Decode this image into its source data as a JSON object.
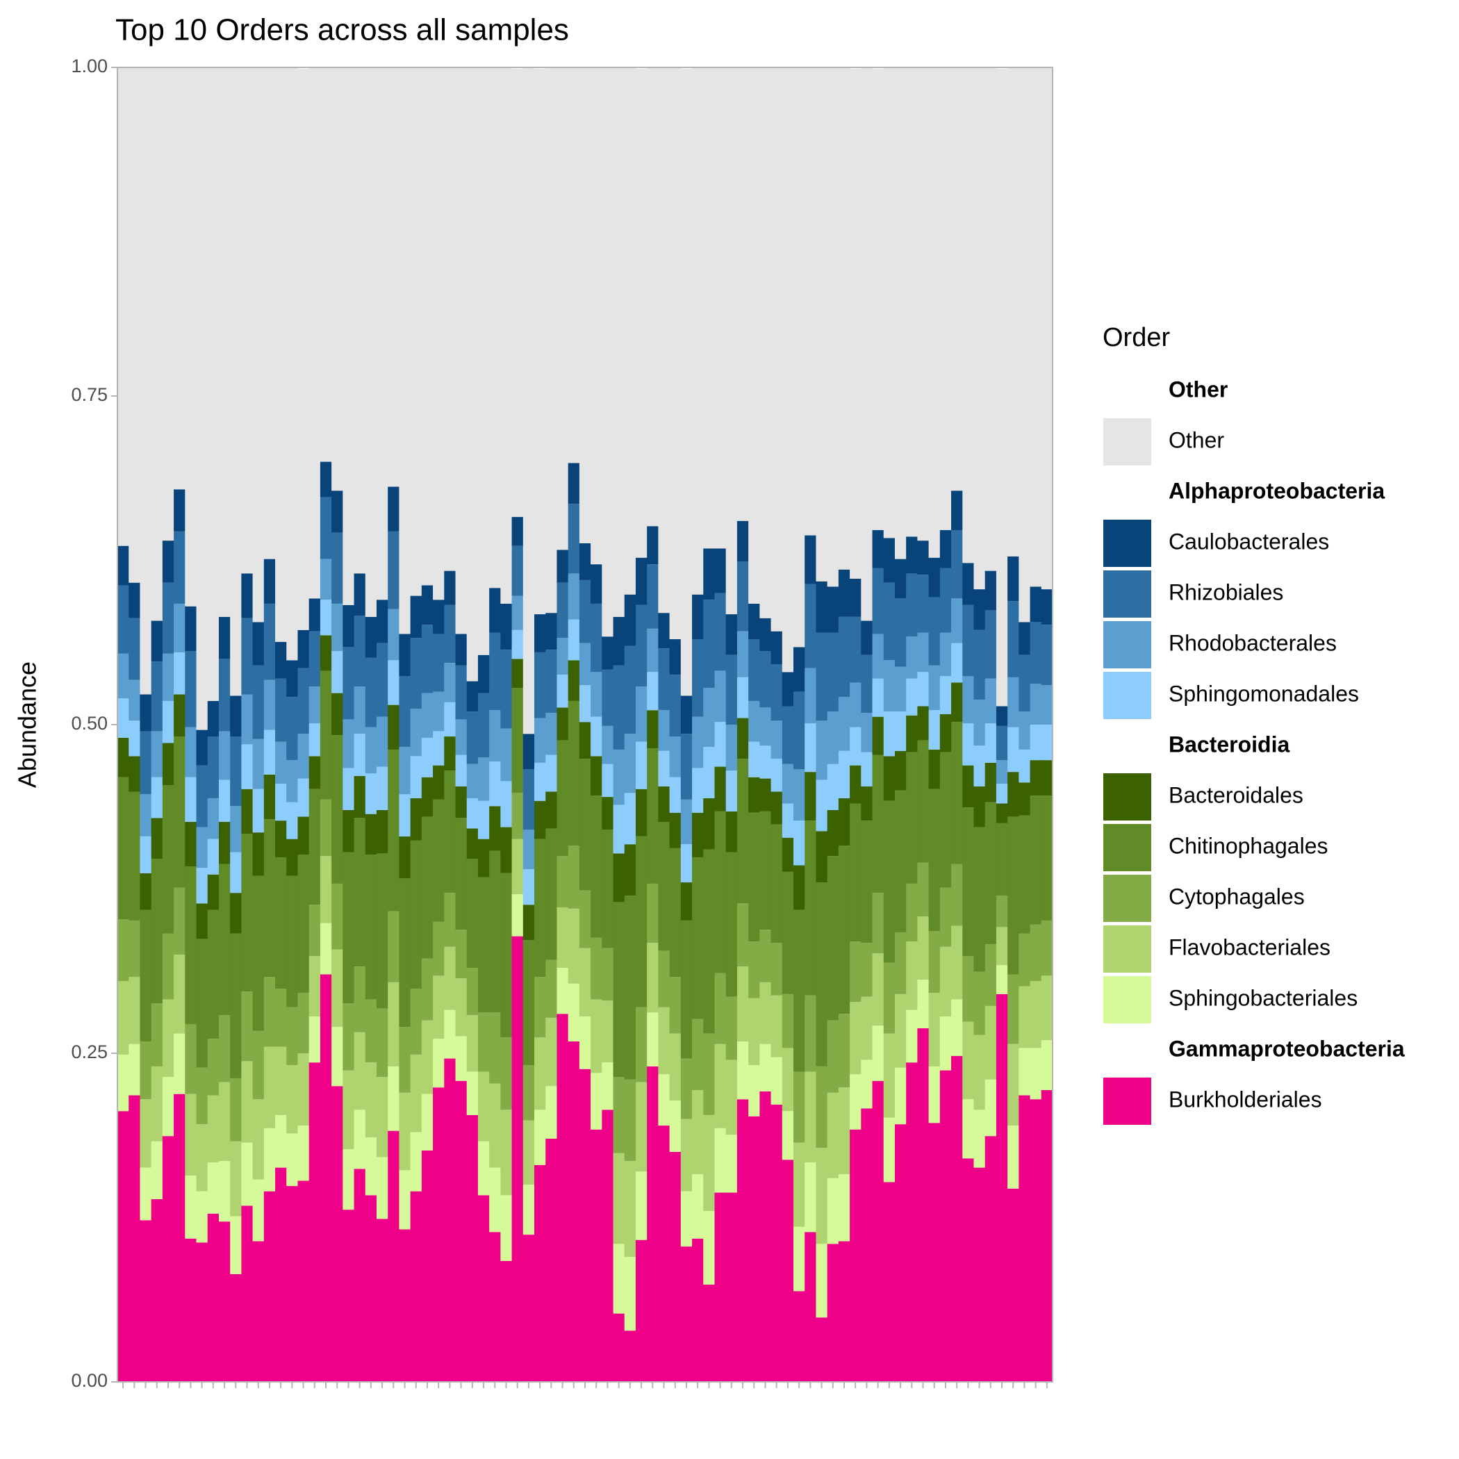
{
  "chart_data": {
    "type": "stacked_bar",
    "title": "Top 10 Orders across all samples",
    "y_label": "Abundance",
    "legend_title": "Order",
    "legend_position": "right",
    "grid": false,
    "ylim": [
      0,
      1
    ],
    "yticks": [
      {
        "value": 0,
        "label": "0.00"
      },
      0.25,
      {
        "value": 0.5,
        "label": "0.50"
      },
      0.75,
      {
        "value": 1,
        "label": "1.00"
      }
    ],
    "categories": [
      null,
      null,
      null,
      null,
      null,
      null,
      null,
      null,
      null,
      null,
      null,
      null,
      null,
      null,
      null,
      null,
      null,
      null,
      null,
      null,
      null,
      null,
      null,
      null,
      null,
      null,
      null,
      null,
      null,
      null,
      null,
      null,
      null,
      null,
      null,
      null,
      null,
      null,
      null,
      null,
      null,
      null,
      null,
      null,
      null,
      null,
      null,
      null,
      null,
      null,
      null,
      null,
      null,
      null,
      null,
      null,
      null,
      null,
      null,
      null,
      null,
      null,
      null,
      null,
      null,
      null,
      null,
      null,
      null,
      null,
      null,
      null,
      null,
      null,
      null,
      null,
      null,
      null,
      null,
      null,
      null,
      null,
      null
    ],
    "series": [
      {
        "name": "Other",
        "group": "Other",
        "color": "#e5e5e5",
        "values": [
          0.364,
          0.392,
          0.477,
          0.421,
          0.363,
          0.321,
          0.411,
          0.504,
          0.482,
          0.418,
          0.478,
          0.386,
          0.423,
          0.375,
          0.437,
          0.451,
          0.427,
          0.407,
          0.3,
          0.325,
          0.409,
          0.388,
          0.418,
          0.406,
          0.319,
          0.434,
          0.405,
          0.394,
          0.406,
          0.384,
          0.431,
          0.467,
          0.448,
          0.396,
          0.408,
          0.341,
          0.508,
          0.415,
          0.415,
          0.37,
          0.301,
          0.362,
          0.378,
          0.433,
          0.418,
          0.401,
          0.372,
          0.35,
          0.415,
          0.435,
          0.477,
          0.401,
          0.366,
          0.366,
          0.416,
          0.345,
          0.408,
          0.419,
          0.429,
          0.461,
          0.441,
          0.356,
          0.391,
          0.395,
          0.383,
          0.388,
          0.422,
          0.351,
          0.358,
          0.374,
          0.357,
          0.361,
          0.373,
          0.353,
          0.322,
          0.38,
          0.397,
          0.383,
          0.485,
          0.373,
          0.422,
          0.395,
          0.398
        ]
      },
      {
        "name": "Caulobacterales",
        "group": "Alphaproteobacteria",
        "color": "#08437a",
        "values": [
          0.03,
          0.027,
          0.028,
          0.031,
          0.032,
          0.032,
          0.034,
          0.027,
          0.027,
          0.032,
          0.031,
          0.034,
          0.033,
          0.034,
          0.028,
          0.028,
          0.029,
          0.025,
          0.027,
          0.032,
          0.032,
          0.032,
          0.031,
          0.033,
          0.034,
          0.032,
          0.032,
          0.03,
          0.026,
          0.026,
          0.024,
          0.023,
          0.029,
          0.034,
          0.035,
          0.022,
          0.027,
          0.029,
          0.028,
          0.025,
          0.031,
          0.028,
          0.03,
          0.025,
          0.037,
          0.039,
          0.036,
          0.029,
          0.027,
          0.027,
          0.029,
          0.034,
          0.039,
          0.034,
          0.031,
          0.031,
          0.027,
          0.025,
          0.025,
          0.026,
          0.034,
          0.037,
          0.039,
          0.035,
          0.036,
          0.029,
          0.026,
          0.029,
          0.034,
          0.03,
          0.028,
          0.026,
          0.03,
          0.029,
          0.03,
          0.032,
          0.031,
          0.03,
          0.015,
          0.034,
          0.025,
          0.027,
          0.027
        ]
      },
      {
        "name": "Rhizobiales",
        "group": "Alphaproteobacteria",
        "color": "#2e6fa3",
        "values": [
          0.052,
          0.047,
          0.048,
          0.053,
          0.054,
          0.055,
          0.058,
          0.047,
          0.047,
          0.055,
          0.053,
          0.058,
          0.056,
          0.058,
          0.048,
          0.048,
          0.05,
          0.042,
          0.047,
          0.054,
          0.055,
          0.054,
          0.053,
          0.056,
          0.059,
          0.054,
          0.054,
          0.052,
          0.044,
          0.044,
          0.041,
          0.04,
          0.049,
          0.059,
          0.06,
          0.038,
          0.046,
          0.05,
          0.048,
          0.042,
          0.053,
          0.048,
          0.052,
          0.043,
          0.064,
          0.067,
          0.062,
          0.049,
          0.047,
          0.047,
          0.05,
          0.059,
          0.067,
          0.059,
          0.053,
          0.053,
          0.047,
          0.043,
          0.043,
          0.044,
          0.059,
          0.064,
          0.067,
          0.06,
          0.061,
          0.05,
          0.044,
          0.05,
          0.059,
          0.052,
          0.048,
          0.044,
          0.052,
          0.049,
          0.052,
          0.054,
          0.053,
          0.052,
          0.026,
          0.058,
          0.043,
          0.047,
          0.046
        ]
      },
      {
        "name": "Rhodobacterales",
        "group": "Alphaproteobacteria",
        "color": "#5b9fd1",
        "values": [
          0.034,
          0.031,
          0.032,
          0.035,
          0.036,
          0.037,
          0.038,
          0.031,
          0.031,
          0.037,
          0.035,
          0.038,
          0.038,
          0.038,
          0.032,
          0.032,
          0.034,
          0.028,
          0.031,
          0.036,
          0.037,
          0.036,
          0.035,
          0.038,
          0.039,
          0.036,
          0.036,
          0.034,
          0.03,
          0.03,
          0.027,
          0.026,
          0.033,
          0.039,
          0.04,
          0.026,
          0.03,
          0.034,
          0.032,
          0.028,
          0.035,
          0.032,
          0.034,
          0.029,
          0.042,
          0.045,
          0.042,
          0.033,
          0.031,
          0.031,
          0.034,
          0.039,
          0.045,
          0.039,
          0.035,
          0.035,
          0.031,
          0.029,
          0.029,
          0.03,
          0.039,
          0.042,
          0.045,
          0.04,
          0.041,
          0.034,
          0.03,
          0.034,
          0.039,
          0.034,
          0.032,
          0.03,
          0.034,
          0.033,
          0.034,
          0.036,
          0.035,
          0.034,
          0.018,
          0.038,
          0.029,
          0.031,
          0.03
        ]
      },
      {
        "name": "Sphingomonadales",
        "group": "Alphaproteobacteria",
        "color": "#8dcdfd",
        "values": [
          0.03,
          0.027,
          0.028,
          0.031,
          0.032,
          0.032,
          0.034,
          0.027,
          0.027,
          0.032,
          0.031,
          0.034,
          0.033,
          0.034,
          0.028,
          0.028,
          0.029,
          0.025,
          0.027,
          0.032,
          0.032,
          0.032,
          0.031,
          0.033,
          0.034,
          0.032,
          0.032,
          0.03,
          0.026,
          0.026,
          0.024,
          0.023,
          0.029,
          0.034,
          0.035,
          0.022,
          0.027,
          0.029,
          0.028,
          0.025,
          0.031,
          0.028,
          0.03,
          0.025,
          0.037,
          0.039,
          0.036,
          0.029,
          0.027,
          0.027,
          0.029,
          0.034,
          0.039,
          0.034,
          0.031,
          0.031,
          0.027,
          0.025,
          0.025,
          0.026,
          0.034,
          0.037,
          0.039,
          0.035,
          0.036,
          0.029,
          0.026,
          0.029,
          0.034,
          0.03,
          0.028,
          0.026,
          0.03,
          0.029,
          0.03,
          0.032,
          0.031,
          0.03,
          0.015,
          0.034,
          0.025,
          0.027,
          0.027
        ]
      },
      {
        "name": "Bacteroidales",
        "group": "Bacteroidia",
        "color": "#3c6100",
        "values": [
          0.03,
          0.027,
          0.028,
          0.031,
          0.032,
          0.032,
          0.034,
          0.027,
          0.027,
          0.032,
          0.031,
          0.034,
          0.033,
          0.034,
          0.028,
          0.028,
          0.029,
          0.025,
          0.027,
          0.032,
          0.032,
          0.032,
          0.031,
          0.033,
          0.034,
          0.032,
          0.032,
          0.03,
          0.026,
          0.026,
          0.024,
          0.023,
          0.029,
          0.034,
          0.035,
          0.022,
          0.027,
          0.029,
          0.028,
          0.025,
          0.031,
          0.028,
          0.03,
          0.025,
          0.037,
          0.039,
          0.036,
          0.029,
          0.027,
          0.027,
          0.029,
          0.034,
          0.039,
          0.034,
          0.031,
          0.031,
          0.027,
          0.025,
          0.025,
          0.026,
          0.034,
          0.037,
          0.039,
          0.035,
          0.036,
          0.029,
          0.026,
          0.029,
          0.034,
          0.03,
          0.028,
          0.026,
          0.03,
          0.029,
          0.03,
          0.032,
          0.031,
          0.03,
          0.015,
          0.034,
          0.025,
          0.027,
          0.027
        ]
      },
      {
        "name": "Chitinophagales",
        "group": "Bacteroidia",
        "color": "#618b26",
        "values": [
          0.108,
          0.098,
          0.1,
          0.11,
          0.113,
          0.115,
          0.12,
          0.098,
          0.098,
          0.115,
          0.11,
          0.12,
          0.118,
          0.12,
          0.1,
          0.1,
          0.105,
          0.088,
          0.098,
          0.113,
          0.115,
          0.113,
          0.11,
          0.118,
          0.123,
          0.113,
          0.113,
          0.108,
          0.093,
          0.093,
          0.085,
          0.083,
          0.103,
          0.123,
          0.125,
          0.08,
          0.095,
          0.105,
          0.1,
          0.088,
          0.11,
          0.1,
          0.108,
          0.09,
          0.133,
          0.14,
          0.13,
          0.103,
          0.098,
          0.098,
          0.105,
          0.123,
          0.14,
          0.123,
          0.11,
          0.11,
          0.098,
          0.09,
          0.09,
          0.093,
          0.123,
          0.133,
          0.14,
          0.125,
          0.128,
          0.105,
          0.093,
          0.105,
          0.123,
          0.108,
          0.1,
          0.093,
          0.108,
          0.103,
          0.108,
          0.113,
          0.11,
          0.108,
          0.055,
          0.12,
          0.09,
          0.098,
          0.095
        ]
      },
      {
        "name": "Cytophagales",
        "group": "Bacteroidia",
        "color": "#83ab46",
        "values": [
          0.047,
          0.043,
          0.044,
          0.048,
          0.05,
          0.051,
          0.053,
          0.043,
          0.043,
          0.051,
          0.048,
          0.053,
          0.052,
          0.053,
          0.044,
          0.044,
          0.046,
          0.039,
          0.043,
          0.05,
          0.051,
          0.05,
          0.048,
          0.052,
          0.054,
          0.05,
          0.05,
          0.047,
          0.041,
          0.041,
          0.037,
          0.036,
          0.045,
          0.054,
          0.055,
          0.035,
          0.042,
          0.046,
          0.044,
          0.039,
          0.048,
          0.044,
          0.047,
          0.04,
          0.058,
          0.062,
          0.057,
          0.045,
          0.043,
          0.043,
          0.046,
          0.054,
          0.062,
          0.054,
          0.048,
          0.048,
          0.043,
          0.04,
          0.04,
          0.041,
          0.054,
          0.058,
          0.062,
          0.055,
          0.056,
          0.046,
          0.041,
          0.046,
          0.054,
          0.047,
          0.044,
          0.041,
          0.047,
          0.045,
          0.047,
          0.05,
          0.048,
          0.047,
          0.024,
          0.053,
          0.04,
          0.043,
          0.042
        ]
      },
      {
        "name": "Flavobacteriales",
        "group": "Bacteroidia",
        "color": "#afd46f",
        "values": [
          0.056,
          0.051,
          0.052,
          0.057,
          0.059,
          0.06,
          0.062,
          0.051,
          0.051,
          0.06,
          0.057,
          0.062,
          0.061,
          0.062,
          0.052,
          0.052,
          0.055,
          0.046,
          0.051,
          0.059,
          0.06,
          0.059,
          0.057,
          0.061,
          0.064,
          0.059,
          0.059,
          0.056,
          0.048,
          0.048,
          0.044,
          0.043,
          0.053,
          0.064,
          0.065,
          0.042,
          0.049,
          0.055,
          0.052,
          0.046,
          0.057,
          0.052,
          0.056,
          0.047,
          0.069,
          0.073,
          0.068,
          0.053,
          0.051,
          0.051,
          0.055,
          0.064,
          0.073,
          0.064,
          0.057,
          0.057,
          0.051,
          0.047,
          0.047,
          0.048,
          0.064,
          0.069,
          0.073,
          0.065,
          0.066,
          0.055,
          0.048,
          0.055,
          0.064,
          0.056,
          0.052,
          0.048,
          0.056,
          0.053,
          0.056,
          0.059,
          0.057,
          0.056,
          0.029,
          0.062,
          0.047,
          0.051,
          0.049
        ]
      },
      {
        "name": "Sphingobacteriales",
        "group": "Bacteroidia",
        "color": "#d6fa9a",
        "values": [
          0.043,
          0.039,
          0.04,
          0.044,
          0.045,
          0.046,
          0.048,
          0.039,
          0.039,
          0.046,
          0.044,
          0.048,
          0.047,
          0.048,
          0.04,
          0.04,
          0.042,
          0.035,
          0.039,
          0.045,
          0.046,
          0.045,
          0.044,
          0.047,
          0.049,
          0.045,
          0.045,
          0.043,
          0.037,
          0.037,
          0.034,
          0.033,
          0.041,
          0.049,
          0.05,
          0.032,
          0.038,
          0.042,
          0.04,
          0.035,
          0.044,
          0.04,
          0.043,
          0.036,
          0.053,
          0.056,
          0.052,
          0.041,
          0.039,
          0.039,
          0.042,
          0.049,
          0.056,
          0.049,
          0.044,
          0.044,
          0.039,
          0.036,
          0.036,
          0.037,
          0.049,
          0.053,
          0.056,
          0.05,
          0.051,
          0.042,
          0.037,
          0.042,
          0.049,
          0.043,
          0.04,
          0.037,
          0.043,
          0.041,
          0.043,
          0.045,
          0.044,
          0.043,
          0.022,
          0.048,
          0.036,
          0.039,
          0.038
        ]
      },
      {
        "name": "Burkholderiales",
        "group": "Gammaproteobacteria",
        "color": "#ee0089",
        "values": [
          0.206,
          0.218,
          0.123,
          0.139,
          0.187,
          0.219,
          0.109,
          0.106,
          0.128,
          0.122,
          0.082,
          0.134,
          0.107,
          0.145,
          0.163,
          0.149,
          0.153,
          0.243,
          0.31,
          0.225,
          0.131,
          0.162,
          0.142,
          0.124,
          0.191,
          0.116,
          0.145,
          0.176,
          0.224,
          0.246,
          0.229,
          0.203,
          0.142,
          0.114,
          0.092,
          0.339,
          0.112,
          0.165,
          0.185,
          0.28,
          0.259,
          0.238,
          0.192,
          0.207,
          0.052,
          0.039,
          0.108,
          0.24,
          0.195,
          0.175,
          0.103,
          0.109,
          0.074,
          0.144,
          0.144,
          0.215,
          0.202,
          0.221,
          0.211,
          0.169,
          0.069,
          0.114,
          0.049,
          0.105,
          0.107,
          0.192,
          0.208,
          0.229,
          0.152,
          0.196,
          0.243,
          0.269,
          0.197,
          0.237,
          0.248,
          0.17,
          0.163,
          0.187,
          0.295,
          0.147,
          0.218,
          0.215,
          0.222
        ]
      }
    ]
  }
}
